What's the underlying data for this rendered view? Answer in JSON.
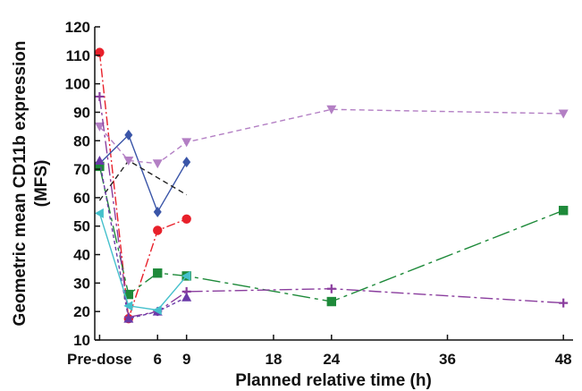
{
  "chart_data": {
    "type": "line",
    "ylabel_line1": "Geometric mean CD11b expression",
    "ylabel_line2": "(MFS)",
    "xlabel": "Planned relative time (h)",
    "xlim": [
      -0.5,
      49
    ],
    "ylim": [
      10,
      120
    ],
    "x_ticks": [
      {
        "x": 0,
        "label": "Pre-dose"
      },
      {
        "x": 6,
        "label": "6"
      },
      {
        "x": 9,
        "label": "9"
      },
      {
        "x": 18,
        "label": "18"
      },
      {
        "x": 24,
        "label": "24"
      },
      {
        "x": 36,
        "label": "36"
      },
      {
        "x": 48,
        "label": "48"
      }
    ],
    "y_ticks": [
      10,
      20,
      30,
      40,
      50,
      60,
      70,
      80,
      90,
      100,
      110,
      120
    ],
    "grid": false,
    "series": [
      {
        "id": "red-circle",
        "color": "#e8202a",
        "marker": "circle",
        "dash": "10,3,2,3",
        "points": [
          [
            0,
            111
          ],
          [
            3,
            17.5
          ],
          [
            6,
            48.5
          ],
          [
            9,
            52.5
          ]
        ]
      },
      {
        "id": "blue-diamond",
        "color": "#3a55a8",
        "marker": "diamond",
        "dash": "",
        "points": [
          [
            0,
            72
          ],
          [
            3,
            82
          ],
          [
            6,
            55
          ],
          [
            9,
            72.5
          ]
        ]
      },
      {
        "id": "black-dashed",
        "color": "#222222",
        "marker": "none",
        "dash": "6,4",
        "points": [
          [
            0,
            59
          ],
          [
            3,
            73
          ],
          [
            9,
            61
          ]
        ]
      },
      {
        "id": "lilac-triangle-down",
        "color": "#b37fc4",
        "marker": "triangle-down",
        "dash": "6,4",
        "points": [
          [
            0,
            85
          ],
          [
            3,
            73
          ],
          [
            6,
            72
          ],
          [
            9,
            79.5
          ],
          [
            24,
            91
          ],
          [
            48,
            89.5
          ]
        ]
      },
      {
        "id": "green-square",
        "color": "#1e8a3a",
        "marker": "square",
        "dash": "20,5,4,5",
        "points": [
          [
            0,
            71
          ],
          [
            3,
            26
          ],
          [
            6,
            33.5
          ],
          [
            9,
            32.5
          ],
          [
            24,
            23.5
          ],
          [
            48,
            55.5
          ]
        ]
      },
      {
        "id": "purple-plus",
        "color": "#8a3d9e",
        "marker": "plus",
        "dash": "14,4,3,4",
        "points": [
          [
            0,
            95.5
          ],
          [
            3,
            18
          ],
          [
            6,
            20
          ],
          [
            9,
            27
          ],
          [
            24,
            28
          ],
          [
            48,
            23
          ]
        ]
      },
      {
        "id": "purple-triangle-up",
        "color": "#6a3aa8",
        "marker": "triangle-up",
        "dash": "4,3",
        "points": [
          [
            0,
            73
          ],
          [
            3,
            17.5
          ],
          [
            6,
            20
          ],
          [
            9,
            25
          ]
        ]
      },
      {
        "id": "cyan-triangle-left",
        "color": "#45c0cc",
        "marker": "triangle-left",
        "dash": "",
        "points": [
          [
            0,
            54.5
          ],
          [
            3,
            22
          ],
          [
            6,
            20.5
          ],
          [
            9,
            32.5
          ]
        ]
      }
    ]
  }
}
